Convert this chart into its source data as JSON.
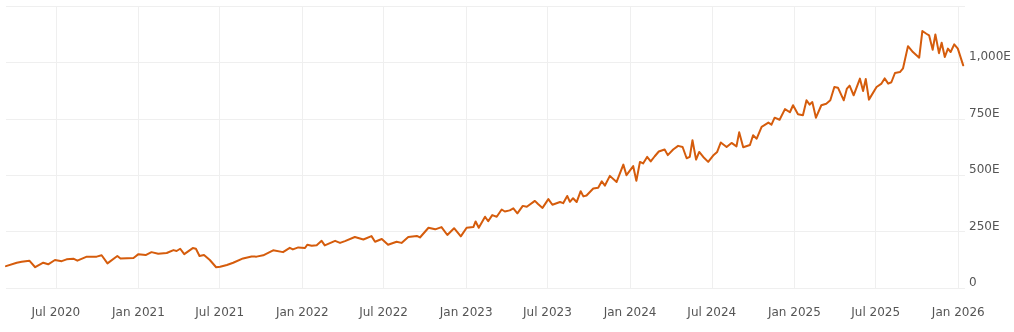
{
  "chart_data": {
    "type": "line",
    "x": [
      "2020-03-12",
      "2020-04-05",
      "2020-04-16",
      "2020-05-03",
      "2020-05-16",
      "2020-06-03",
      "2020-06-14",
      "2020-06-29",
      "2020-07-14",
      "2020-07-25",
      "2020-08-09",
      "2020-08-18",
      "2020-09-08",
      "2020-09-30",
      "2020-10-11",
      "2020-10-24",
      "2020-11-15",
      "2020-11-22",
      "2020-12-21",
      "2021-01-01",
      "2021-01-17",
      "2021-01-30",
      "2021-02-14",
      "2021-03-05",
      "2021-03-20",
      "2021-03-27",
      "2021-04-04",
      "2021-04-13",
      "2021-05-02",
      "2021-05-09",
      "2021-05-17",
      "2021-05-27",
      "2021-06-09",
      "2021-06-23",
      "2021-07-02",
      "2021-07-17",
      "2021-07-31",
      "2021-08-22",
      "2021-09-10",
      "2021-09-21",
      "2021-10-06",
      "2021-10-28",
      "2021-11-19",
      "2021-12-04",
      "2021-12-11",
      "2021-12-23",
      "2022-01-07",
      "2022-01-12",
      "2022-01-22",
      "2022-02-02",
      "2022-02-13",
      "2022-02-20",
      "2022-03-15",
      "2022-03-26",
      "2022-04-06",
      "2022-04-28",
      "2022-05-17",
      "2022-06-04",
      "2022-06-12",
      "2022-06-27",
      "2022-07-11",
      "2022-07-30",
      "2022-08-10",
      "2022-08-25",
      "2022-09-13",
      "2022-09-20",
      "2022-10-09",
      "2022-10-24",
      "2022-11-07",
      "2022-11-20",
      "2022-12-05",
      "2022-12-20",
      "2023-01-02",
      "2023-01-17",
      "2023-01-22",
      "2023-01-29",
      "2023-02-12",
      "2023-02-19",
      "2023-02-28",
      "2023-03-10",
      "2023-03-21",
      "2023-03-28",
      "2023-04-08",
      "2023-04-16",
      "2023-04-25",
      "2023-05-07",
      "2023-05-16",
      "2023-06-03",
      "2023-06-10",
      "2023-06-20",
      "2023-07-03",
      "2023-07-12",
      "2023-07-29",
      "2023-08-05",
      "2023-08-14",
      "2023-08-20",
      "2023-08-27",
      "2023-09-04",
      "2023-09-13",
      "2023-09-19",
      "2023-09-26",
      "2023-10-11",
      "2023-10-22",
      "2023-10-30",
      "2023-11-06",
      "2023-11-17",
      "2023-12-02",
      "2023-12-17",
      "2023-12-24",
      "2024-01-08",
      "2024-01-15",
      "2024-01-23",
      "2024-01-30",
      "2024-02-08",
      "2024-02-16",
      "2024-02-25",
      "2024-03-05",
      "2024-03-18",
      "2024-03-25",
      "2024-04-06",
      "2024-04-17",
      "2024-04-27",
      "2024-05-06",
      "2024-05-13",
      "2024-05-19",
      "2024-05-27",
      "2024-06-03",
      "2024-06-12",
      "2024-06-23",
      "2024-07-04",
      "2024-07-13",
      "2024-07-21",
      "2024-08-03",
      "2024-08-14",
      "2024-08-25",
      "2024-08-31",
      "2024-09-09",
      "2024-09-24",
      "2024-10-01",
      "2024-10-09",
      "2024-10-20",
      "2024-11-04",
      "2024-11-11",
      "2024-11-18",
      "2024-11-29",
      "2024-12-11",
      "2024-12-22",
      "2024-12-29",
      "2025-01-09",
      "2025-01-20",
      "2025-01-28",
      "2025-02-04",
      "2025-02-10",
      "2025-02-18",
      "2025-03-02",
      "2025-03-13",
      "2025-03-22",
      "2025-03-31",
      "2025-04-08",
      "2025-04-21",
      "2025-04-28",
      "2025-05-04",
      "2025-05-13",
      "2025-05-27",
      "2025-06-03",
      "2025-06-09",
      "2025-06-16",
      "2025-07-03",
      "2025-07-14",
      "2025-07-21",
      "2025-07-29",
      "2025-08-05",
      "2025-08-13",
      "2025-08-24",
      "2025-08-31",
      "2025-09-11",
      "2025-09-22",
      "2025-10-06",
      "2025-10-13",
      "2025-10-22",
      "2025-10-28",
      "2025-11-05",
      "2025-11-11",
      "2025-11-19",
      "2025-11-25",
      "2025-12-02",
      "2025-12-09",
      "2025-12-15",
      "2025-12-23",
      "2025-12-31",
      "2026-01-12"
    ],
    "series": [
      {
        "color": "#d55c0c",
        "values": [
          97,
          112,
          116,
          121,
          92,
          112,
          105,
          124,
          119,
          127,
          130,
          121,
          139,
          139,
          145,
          109,
          142,
          131,
          133,
          150,
          146,
          159,
          152,
          155,
          168,
          164,
          174,
          150,
          177,
          174,
          142,
          146,
          124,
          92,
          94,
          102,
          112,
          131,
          140,
          139,
          145,
          167,
          159,
          178,
          171,
          180,
          177,
          192,
          187,
          190,
          209,
          189,
          209,
          200,
          208,
          226,
          215,
          230,
          205,
          217,
          192,
          205,
          200,
          226,
          231,
          224,
          267,
          260,
          270,
          235,
          265,
          229,
          267,
          270,
          295,
          267,
          316,
          296,
          323,
          316,
          348,
          339,
          344,
          353,
          331,
          364,
          360,
          386,
          372,
          355,
          394,
          369,
          381,
          376,
          408,
          382,
          398,
          381,
          429,
          406,
          410,
          441,
          444,
          473,
          454,
          497,
          470,
          547,
          500,
          540,
          475,
          559,
          552,
          581,
          561,
          584,
          605,
          614,
          589,
          614,
          630,
          625,
          575,
          581,
          655,
          569,
          603,
          581,
          559,
          587,
          603,
          645,
          625,
          643,
          628,
          690,
          624,
          634,
          677,
          662,
          714,
          733,
          724,
          755,
          746,
          793,
          779,
          810,
          770,
          766,
          832,
          813,
          824,
          755,
          810,
          817,
          832,
          891,
          888,
          832,
          884,
          897,
          854,
          928,
          873,
          926,
          835,
          891,
          906,
          929,
          906,
          912,
          953,
          957,
          974,
          1072,
          1046,
          1021,
          1139,
          1127,
          1120,
          1056,
          1124,
          1041,
          1087,
          1024,
          1061,
          1046,
          1080,
          1061,
          987
        ]
      }
    ],
    "xlim": [
      "2020-03-12",
      "2026-01-16"
    ],
    "xticks": [
      {
        "value": "2020-07-01",
        "label": "Jul 2020"
      },
      {
        "value": "2021-01-01",
        "label": "Jan 2021"
      },
      {
        "value": "2021-07-01",
        "label": "Jul 2021"
      },
      {
        "value": "2022-01-01",
        "label": "Jan 2022"
      },
      {
        "value": "2022-07-01",
        "label": "Jul 2022"
      },
      {
        "value": "2023-01-01",
        "label": "Jan 2023"
      },
      {
        "value": "2023-07-01",
        "label": "Jul 2023"
      },
      {
        "value": "2024-01-01",
        "label": "Jan 2024"
      },
      {
        "value": "2024-07-01",
        "label": "Jul 2024"
      },
      {
        "value": "2025-01-01",
        "label": "Jan 2025"
      },
      {
        "value": "2025-07-01",
        "label": "Jul 2025"
      },
      {
        "value": "2026-01-01",
        "label": "Jan 2026"
      }
    ],
    "ylim": [
      0,
      1250
    ],
    "yticks": [
      {
        "value": 0,
        "label": "0"
      },
      {
        "value": 250,
        "label": "250E"
      },
      {
        "value": 500,
        "label": "500E"
      },
      {
        "value": 750,
        "label": "750E"
      },
      {
        "value": 1000,
        "label": "1,000E"
      },
      {
        "value": 1250,
        "label": null
      }
    ],
    "grid": true,
    "marker": "none",
    "line_style": "solid"
  }
}
